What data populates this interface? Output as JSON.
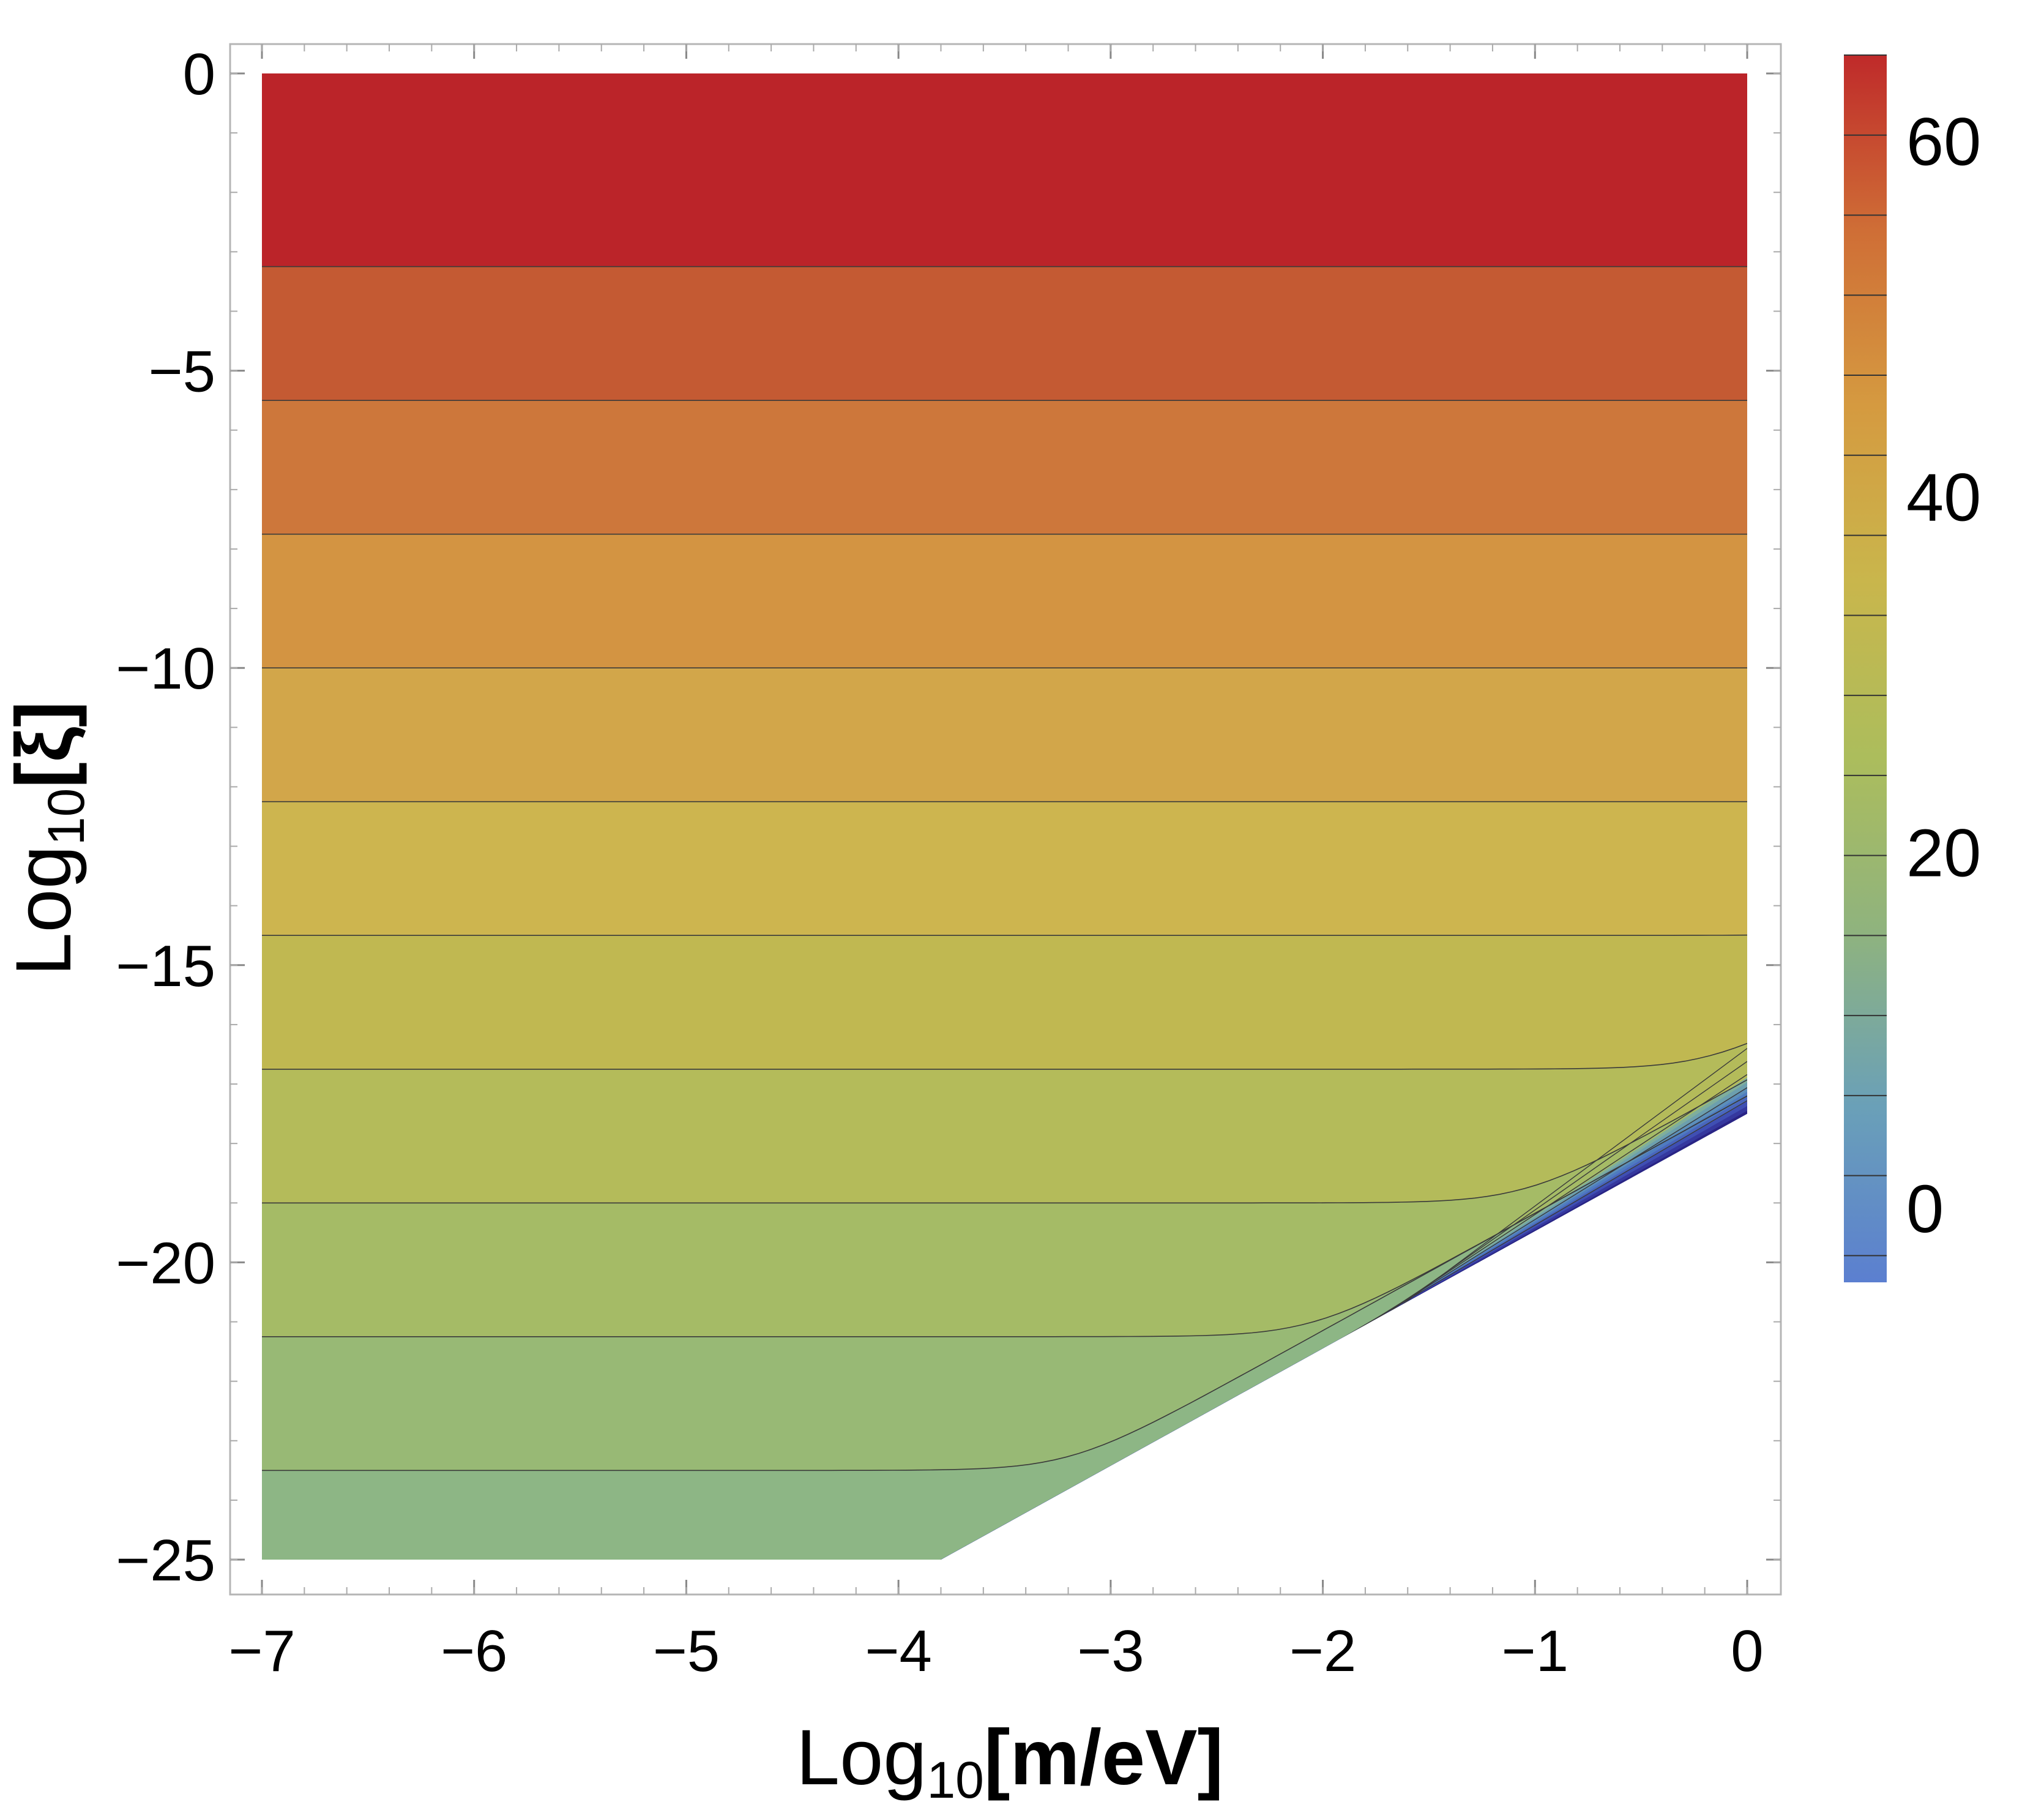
{
  "chart_data": {
    "type": "heatmap",
    "subtype": "filled-contour",
    "title": "",
    "xlabel": {
      "prefix": "Log",
      "sub": "10",
      "body": "[m/eV]"
    },
    "ylabel": {
      "prefix": "Log",
      "sub": "10",
      "body": "[ξ]"
    },
    "xlim": [
      -7,
      0
    ],
    "ylim": [
      -25,
      0
    ],
    "x_ticks": [
      -7,
      -6,
      -5,
      -4,
      -3,
      -2,
      -1,
      0
    ],
    "x_tick_labels": [
      "−7",
      "−6",
      "−5",
      "−4",
      "−3",
      "−2",
      "−1",
      "0"
    ],
    "y_ticks": [
      0,
      -5,
      -10,
      -15,
      -20,
      -25
    ],
    "y_tick_labels": [
      "0",
      "−5",
      "−10",
      "−15",
      "−20",
      "−25"
    ],
    "grid": false,
    "contour_levels_y_at_left_edge": [
      -3.25,
      -5.5,
      -7.75,
      -10,
      -12.25,
      -14.5,
      -16.75,
      -19,
      -21.25,
      -23.5
    ],
    "region_boundary": {
      "x": [
        -3.8,
        0
      ],
      "y": [
        -25,
        -17.5
      ]
    },
    "colorbar": {
      "range": [
        -4,
        65
      ],
      "ticks": [
        0,
        20,
        40,
        60
      ],
      "tick_labels": [
        "0",
        "20",
        "40",
        "60"
      ],
      "colors": [
        "#5b7fd0",
        "#6aa0b8",
        "#8fb37e",
        "#acbd5c",
        "#c9b64c",
        "#d59a40",
        "#cf6e36",
        "#bf2a2a"
      ]
    },
    "bands": [
      {
        "from": 0,
        "to": -3.25,
        "color": "#bb2429"
      },
      {
        "from": -3.25,
        "to": -5.5,
        "color": "#c45a33"
      },
      {
        "from": -5.5,
        "to": -7.75,
        "color": "#cd773b"
      },
      {
        "from": -7.75,
        "to": -10,
        "color": "#d39442"
      },
      {
        "from": -10,
        "to": -12.25,
        "color": "#d2a64a"
      },
      {
        "from": -12.25,
        "to": -14.5,
        "color": "#cdb54f"
      },
      {
        "from": -14.5,
        "to": -16.75,
        "color": "#c0b851"
      },
      {
        "from": -16.75,
        "to": -19,
        "color": "#b4bb5a"
      },
      {
        "from": -19,
        "to": -21.25,
        "color": "#a5bb66"
      },
      {
        "from": -21.25,
        "to": -23.5,
        "color": "#98b975"
      },
      {
        "from": -23.5,
        "to": -25,
        "color": "#8db685"
      }
    ]
  }
}
